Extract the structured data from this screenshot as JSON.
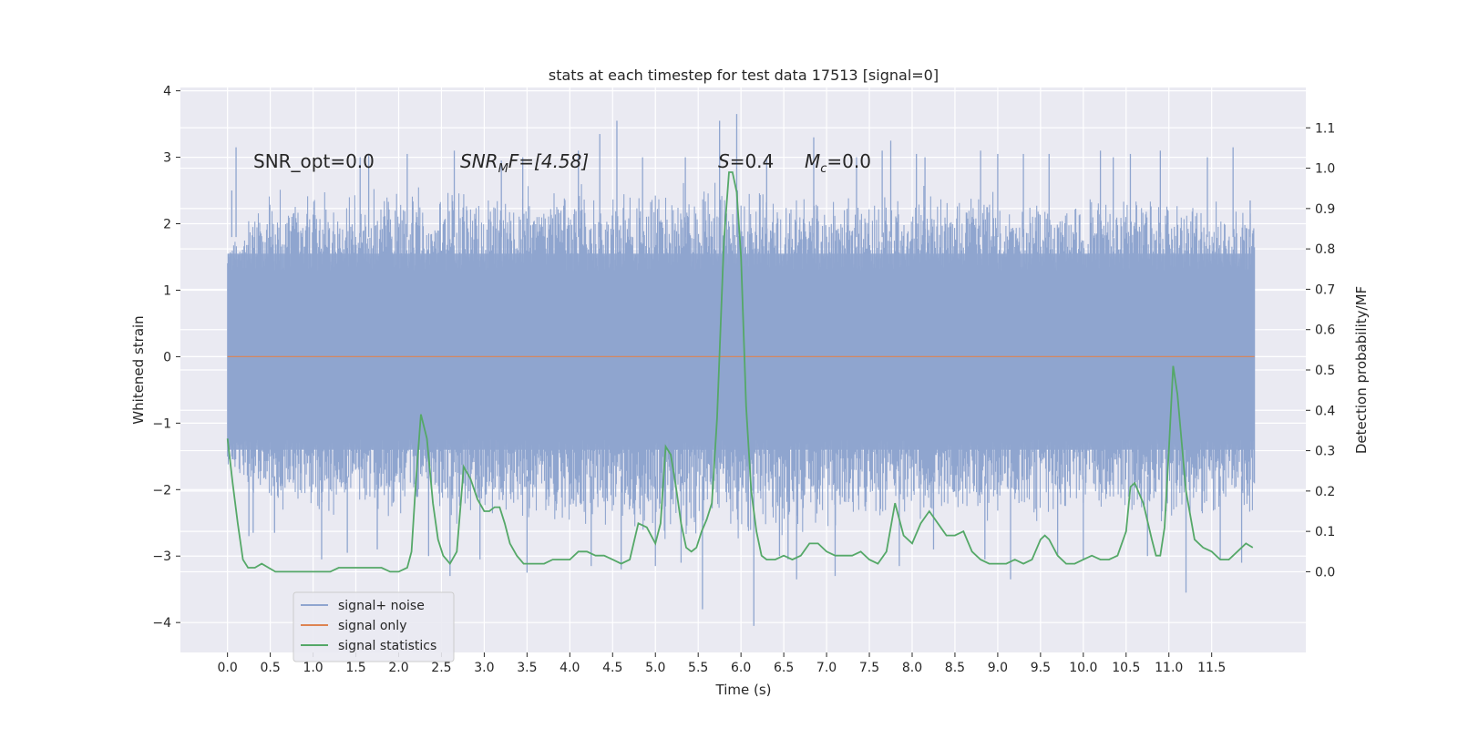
{
  "chart_data": {
    "type": "line",
    "title": "stats at each timestep for test data 17513 [signal=0]",
    "xlabel": "Time (s)",
    "ylabel_left": "Whitened strain",
    "ylabel_right": "Detection probability/MF",
    "xlim": [
      -0.55,
      12.6
    ],
    "ylim_left": [
      -4.45,
      4.05
    ],
    "ylim_right": [
      -0.2,
      1.2
    ],
    "x_ticks": [
      "0.0",
      "0.5",
      "1.0",
      "1.5",
      "2.0",
      "2.5",
      "3.0",
      "3.5",
      "4.0",
      "4.5",
      "5.0",
      "5.5",
      "6.0",
      "6.5",
      "7.0",
      "7.5",
      "8.0",
      "8.5",
      "9.0",
      "9.5",
      "10.0",
      "10.5",
      "11.0",
      "11.5"
    ],
    "y_ticks_left": [
      "4",
      "3",
      "2",
      "1",
      "0",
      "−1",
      "−2",
      "−3",
      "−4"
    ],
    "y_ticks_right": [
      "1.1",
      "1.0",
      "0.9",
      "0.8",
      "0.7",
      "0.6",
      "0.5",
      "0.4",
      "0.3",
      "0.2",
      "0.1",
      "0.0"
    ],
    "grid": true,
    "legend_placement": "lower-left",
    "annotations": {
      "snr_opt": "SNR_opt=0.0",
      "snr_mf_base": "SNR",
      "snr_mf_sub": "M",
      "snr_mf_rest": "F=[4.58]",
      "s_sym": "S",
      "s_val": "=0.4",
      "mc_sym": "M",
      "mc_sub": "c",
      "mc_val": "=0.0"
    },
    "series": [
      {
        "name": "signal+ noise",
        "color": "#8fa5cf",
        "axis": "left",
        "x_range": [
          0.0,
          12.0
        ],
        "envelope_upper": [
          [
            0.0,
            1.7
          ],
          [
            0.5,
            2.6
          ],
          [
            1.0,
            2.5
          ],
          [
            2.0,
            2.6
          ],
          [
            3.0,
            2.6
          ],
          [
            4.0,
            2.6
          ],
          [
            5.0,
            2.7
          ],
          [
            5.5,
            2.8
          ],
          [
            6.0,
            2.6
          ],
          [
            7.0,
            2.5
          ],
          [
            8.0,
            2.6
          ],
          [
            9.0,
            2.5
          ],
          [
            10.0,
            2.6
          ],
          [
            11.0,
            2.5
          ],
          [
            12.0,
            2.3
          ]
        ],
        "envelope_lower": [
          [
            0.0,
            -1.8
          ],
          [
            0.5,
            -2.4
          ],
          [
            1.0,
            -2.5
          ],
          [
            2.0,
            -2.5
          ],
          [
            3.0,
            -2.6
          ],
          [
            4.0,
            -2.7
          ],
          [
            5.0,
            -2.8
          ],
          [
            6.0,
            -2.9
          ],
          [
            7.0,
            -2.7
          ],
          [
            8.0,
            -2.6
          ],
          [
            9.0,
            -2.6
          ],
          [
            10.0,
            -2.5
          ],
          [
            11.0,
            -2.6
          ],
          [
            12.0,
            -2.5
          ]
        ],
        "spikes": [
          [
            0.05,
            2.5
          ],
          [
            0.1,
            3.15
          ],
          [
            0.25,
            -2.7
          ],
          [
            0.3,
            -2.65
          ],
          [
            0.55,
            -2.65
          ],
          [
            1.1,
            -3.05
          ],
          [
            1.4,
            -2.95
          ],
          [
            1.55,
            3.0
          ],
          [
            1.65,
            3.05
          ],
          [
            1.75,
            -2.9
          ],
          [
            2.1,
            3.05
          ],
          [
            2.35,
            -3.0
          ],
          [
            2.6,
            -3.3
          ],
          [
            2.65,
            3.1
          ],
          [
            2.95,
            -3.05
          ],
          [
            3.2,
            2.95
          ],
          [
            3.45,
            3.0
          ],
          [
            3.5,
            -3.25
          ],
          [
            4.1,
            3.1
          ],
          [
            4.25,
            -3.15
          ],
          [
            4.35,
            3.35
          ],
          [
            4.55,
            3.55
          ],
          [
            4.6,
            -3.2
          ],
          [
            4.85,
            3.0
          ],
          [
            5.0,
            -3.15
          ],
          [
            5.3,
            -3.1
          ],
          [
            5.35,
            3.0
          ],
          [
            5.55,
            -3.8
          ],
          [
            5.75,
            3.55
          ],
          [
            5.95,
            3.65
          ],
          [
            6.15,
            -4.05
          ],
          [
            6.3,
            3.0
          ],
          [
            6.45,
            -3.0
          ],
          [
            6.55,
            -3.05
          ],
          [
            6.65,
            -3.35
          ],
          [
            6.85,
            3.3
          ],
          [
            7.1,
            -3.3
          ],
          [
            7.35,
            3.0
          ],
          [
            7.65,
            3.1
          ],
          [
            7.75,
            3.25
          ],
          [
            7.85,
            -3.15
          ],
          [
            8.05,
            3.05
          ],
          [
            8.15,
            3.0
          ],
          [
            8.25,
            -2.9
          ],
          [
            8.8,
            3.1
          ],
          [
            8.85,
            -3.05
          ],
          [
            9.0,
            3.05
          ],
          [
            9.15,
            -3.35
          ],
          [
            9.3,
            3.05
          ],
          [
            9.6,
            3.05
          ],
          [
            9.7,
            -3.0
          ],
          [
            10.0,
            -3.05
          ],
          [
            10.2,
            3.1
          ],
          [
            10.35,
            3.0
          ],
          [
            10.55,
            3.05
          ],
          [
            10.75,
            -3.0
          ],
          [
            10.9,
            3.1
          ],
          [
            11.2,
            -3.55
          ],
          [
            11.45,
            3.0
          ],
          [
            11.6,
            -3.05
          ],
          [
            11.75,
            3.15
          ],
          [
            11.85,
            -3.1
          ],
          [
            11.95,
            2.35
          ]
        ]
      },
      {
        "name": "signal only",
        "color": "#dd8452",
        "axis": "left",
        "x": [
          0.0,
          12.0
        ],
        "y": [
          0.0,
          0.0
        ]
      },
      {
        "name": "signal statistics",
        "color": "#55a868",
        "axis": "right",
        "x": [
          0.0,
          0.06,
          0.12,
          0.18,
          0.24,
          0.32,
          0.4,
          0.48,
          0.56,
          0.64,
          0.72,
          0.8,
          0.9,
          1.0,
          1.1,
          1.2,
          1.3,
          1.4,
          1.5,
          1.6,
          1.7,
          1.8,
          1.9,
          2.0,
          2.1,
          2.15,
          2.2,
          2.26,
          2.33,
          2.4,
          2.46,
          2.52,
          2.6,
          2.68,
          2.76,
          2.84,
          2.92,
          3.0,
          3.06,
          3.12,
          3.18,
          3.24,
          3.3,
          3.38,
          3.46,
          3.54,
          3.62,
          3.7,
          3.8,
          3.9,
          4.0,
          4.1,
          4.2,
          4.3,
          4.4,
          4.5,
          4.6,
          4.7,
          4.8,
          4.9,
          5.0,
          5.06,
          5.12,
          5.18,
          5.24,
          5.3,
          5.36,
          5.42,
          5.48,
          5.54,
          5.6,
          5.66,
          5.72,
          5.8,
          5.86,
          5.9,
          5.95,
          6.0,
          6.06,
          6.12,
          6.18,
          6.24,
          6.3,
          6.4,
          6.5,
          6.6,
          6.7,
          6.8,
          6.9,
          7.0,
          7.1,
          7.2,
          7.3,
          7.4,
          7.5,
          7.6,
          7.7,
          7.8,
          7.9,
          8.0,
          8.1,
          8.2,
          8.3,
          8.4,
          8.5,
          8.6,
          8.7,
          8.8,
          8.9,
          9.0,
          9.1,
          9.2,
          9.3,
          9.4,
          9.5,
          9.55,
          9.6,
          9.7,
          9.8,
          9.9,
          10.0,
          10.1,
          10.2,
          10.3,
          10.4,
          10.5,
          10.55,
          10.6,
          10.7,
          10.8,
          10.85,
          10.9,
          10.95,
          11.0,
          11.05,
          11.1,
          11.2,
          11.3,
          11.4,
          11.5,
          11.6,
          11.7,
          11.8,
          11.9,
          11.98
        ],
        "y": [
          0.33,
          0.22,
          0.12,
          0.03,
          0.01,
          0.01,
          0.02,
          0.01,
          0.0,
          0.0,
          0.0,
          0.0,
          0.0,
          0.0,
          0.0,
          0.0,
          0.01,
          0.01,
          0.01,
          0.01,
          0.01,
          0.01,
          0.0,
          0.0,
          0.01,
          0.05,
          0.22,
          0.39,
          0.33,
          0.17,
          0.08,
          0.04,
          0.02,
          0.05,
          0.26,
          0.23,
          0.18,
          0.15,
          0.15,
          0.16,
          0.16,
          0.12,
          0.07,
          0.04,
          0.02,
          0.02,
          0.02,
          0.02,
          0.03,
          0.03,
          0.03,
          0.05,
          0.05,
          0.04,
          0.04,
          0.03,
          0.02,
          0.03,
          0.12,
          0.11,
          0.07,
          0.12,
          0.31,
          0.29,
          0.21,
          0.12,
          0.06,
          0.05,
          0.06,
          0.1,
          0.13,
          0.17,
          0.38,
          0.82,
          0.99,
          0.99,
          0.94,
          0.78,
          0.41,
          0.2,
          0.1,
          0.04,
          0.03,
          0.03,
          0.04,
          0.03,
          0.04,
          0.07,
          0.07,
          0.05,
          0.04,
          0.04,
          0.04,
          0.05,
          0.03,
          0.02,
          0.05,
          0.17,
          0.09,
          0.07,
          0.12,
          0.15,
          0.12,
          0.09,
          0.09,
          0.1,
          0.05,
          0.03,
          0.02,
          0.02,
          0.02,
          0.03,
          0.02,
          0.03,
          0.08,
          0.09,
          0.08,
          0.04,
          0.02,
          0.02,
          0.03,
          0.04,
          0.03,
          0.03,
          0.04,
          0.1,
          0.21,
          0.22,
          0.17,
          0.08,
          0.04,
          0.04,
          0.11,
          0.3,
          0.51,
          0.44,
          0.2,
          0.08,
          0.06,
          0.05,
          0.03,
          0.03,
          0.05,
          0.07,
          0.06
        ]
      }
    ]
  }
}
